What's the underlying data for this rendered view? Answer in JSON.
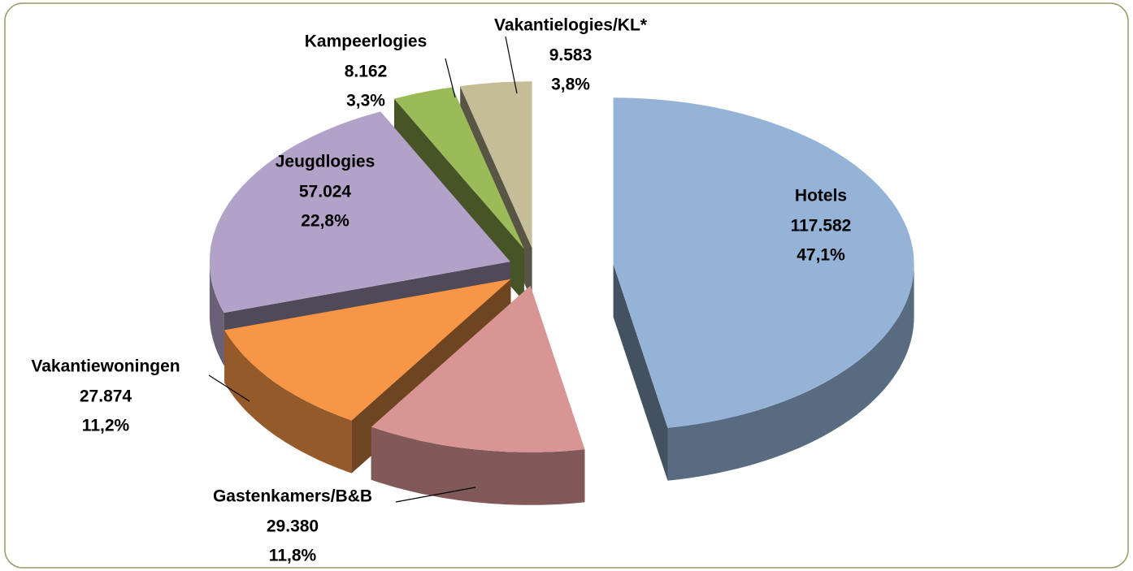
{
  "chart_data": {
    "type": "pie3d",
    "categories": [
      "Hotels",
      "Gastenkamers/B&B",
      "Vakantiewoningen",
      "Jeugdlogies",
      "Kampeerlogies",
      "Vakantielogies/KL*"
    ],
    "values": [
      117582,
      29380,
      27874,
      57024,
      8162,
      9583
    ],
    "value_labels": [
      "117.582",
      "29.380",
      "27.874",
      "57.024",
      "8.162",
      "9.583"
    ],
    "percentages": [
      47.1,
      11.8,
      11.2,
      22.8,
      3.3,
      3.8
    ],
    "percentage_labels": [
      "47,1%",
      "11,8%",
      "11,2%",
      "22,8%",
      "3,3%",
      "3,8%"
    ],
    "colors": [
      "#95b3d7",
      "#d99594",
      "#f79646",
      "#b2a2c7",
      "#9bbb59",
      "#c4bd97"
    ]
  }
}
